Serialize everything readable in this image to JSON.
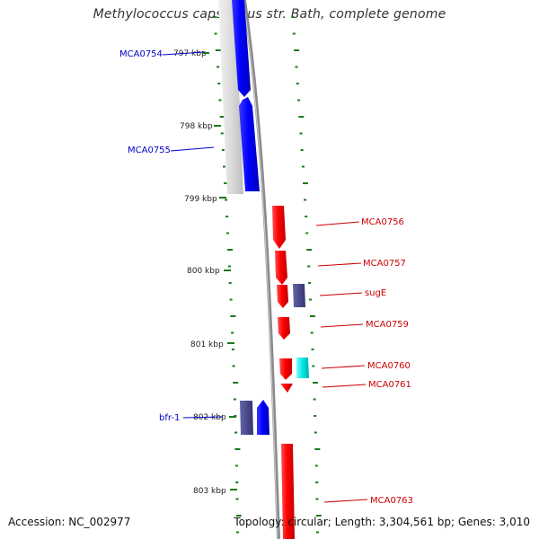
{
  "map": {
    "title": "Methylococcus capsulatus str. Bath, complete genome",
    "accession_label": "Accession: NC_002977",
    "summary_label": "Topology: circular; Length: 3,304,561 bp; Genes: 3,010",
    "ruler_labels": [
      "797 kbp",
      "798 kbp",
      "799 kbp",
      "800 kbp",
      "801 kbp",
      "802 kbp",
      "803 kbp"
    ],
    "colors": {
      "forward_gene": "#0000ff",
      "reverse_gene": "#ff0000",
      "other_gene": "#4a4a8c",
      "rna_gene": "#00e5e5",
      "tick": "#1a7a1a",
      "forward_label": "#0000cc",
      "reverse_label": "#cc0000"
    },
    "gene_labels": [
      {
        "name": "MCA0754",
        "strand": "forward"
      },
      {
        "name": "MCA0755",
        "strand": "forward"
      },
      {
        "name": "MCA0756",
        "strand": "reverse"
      },
      {
        "name": "MCA0757",
        "strand": "reverse"
      },
      {
        "name": "sugE",
        "strand": "reverse"
      },
      {
        "name": "MCA0759",
        "strand": "reverse"
      },
      {
        "name": "MCA0760",
        "strand": "reverse"
      },
      {
        "name": "MCA0761",
        "strand": "reverse"
      },
      {
        "name": "bfr-1",
        "strand": "forward"
      },
      {
        "name": "MCA0763",
        "strand": "reverse"
      }
    ]
  }
}
